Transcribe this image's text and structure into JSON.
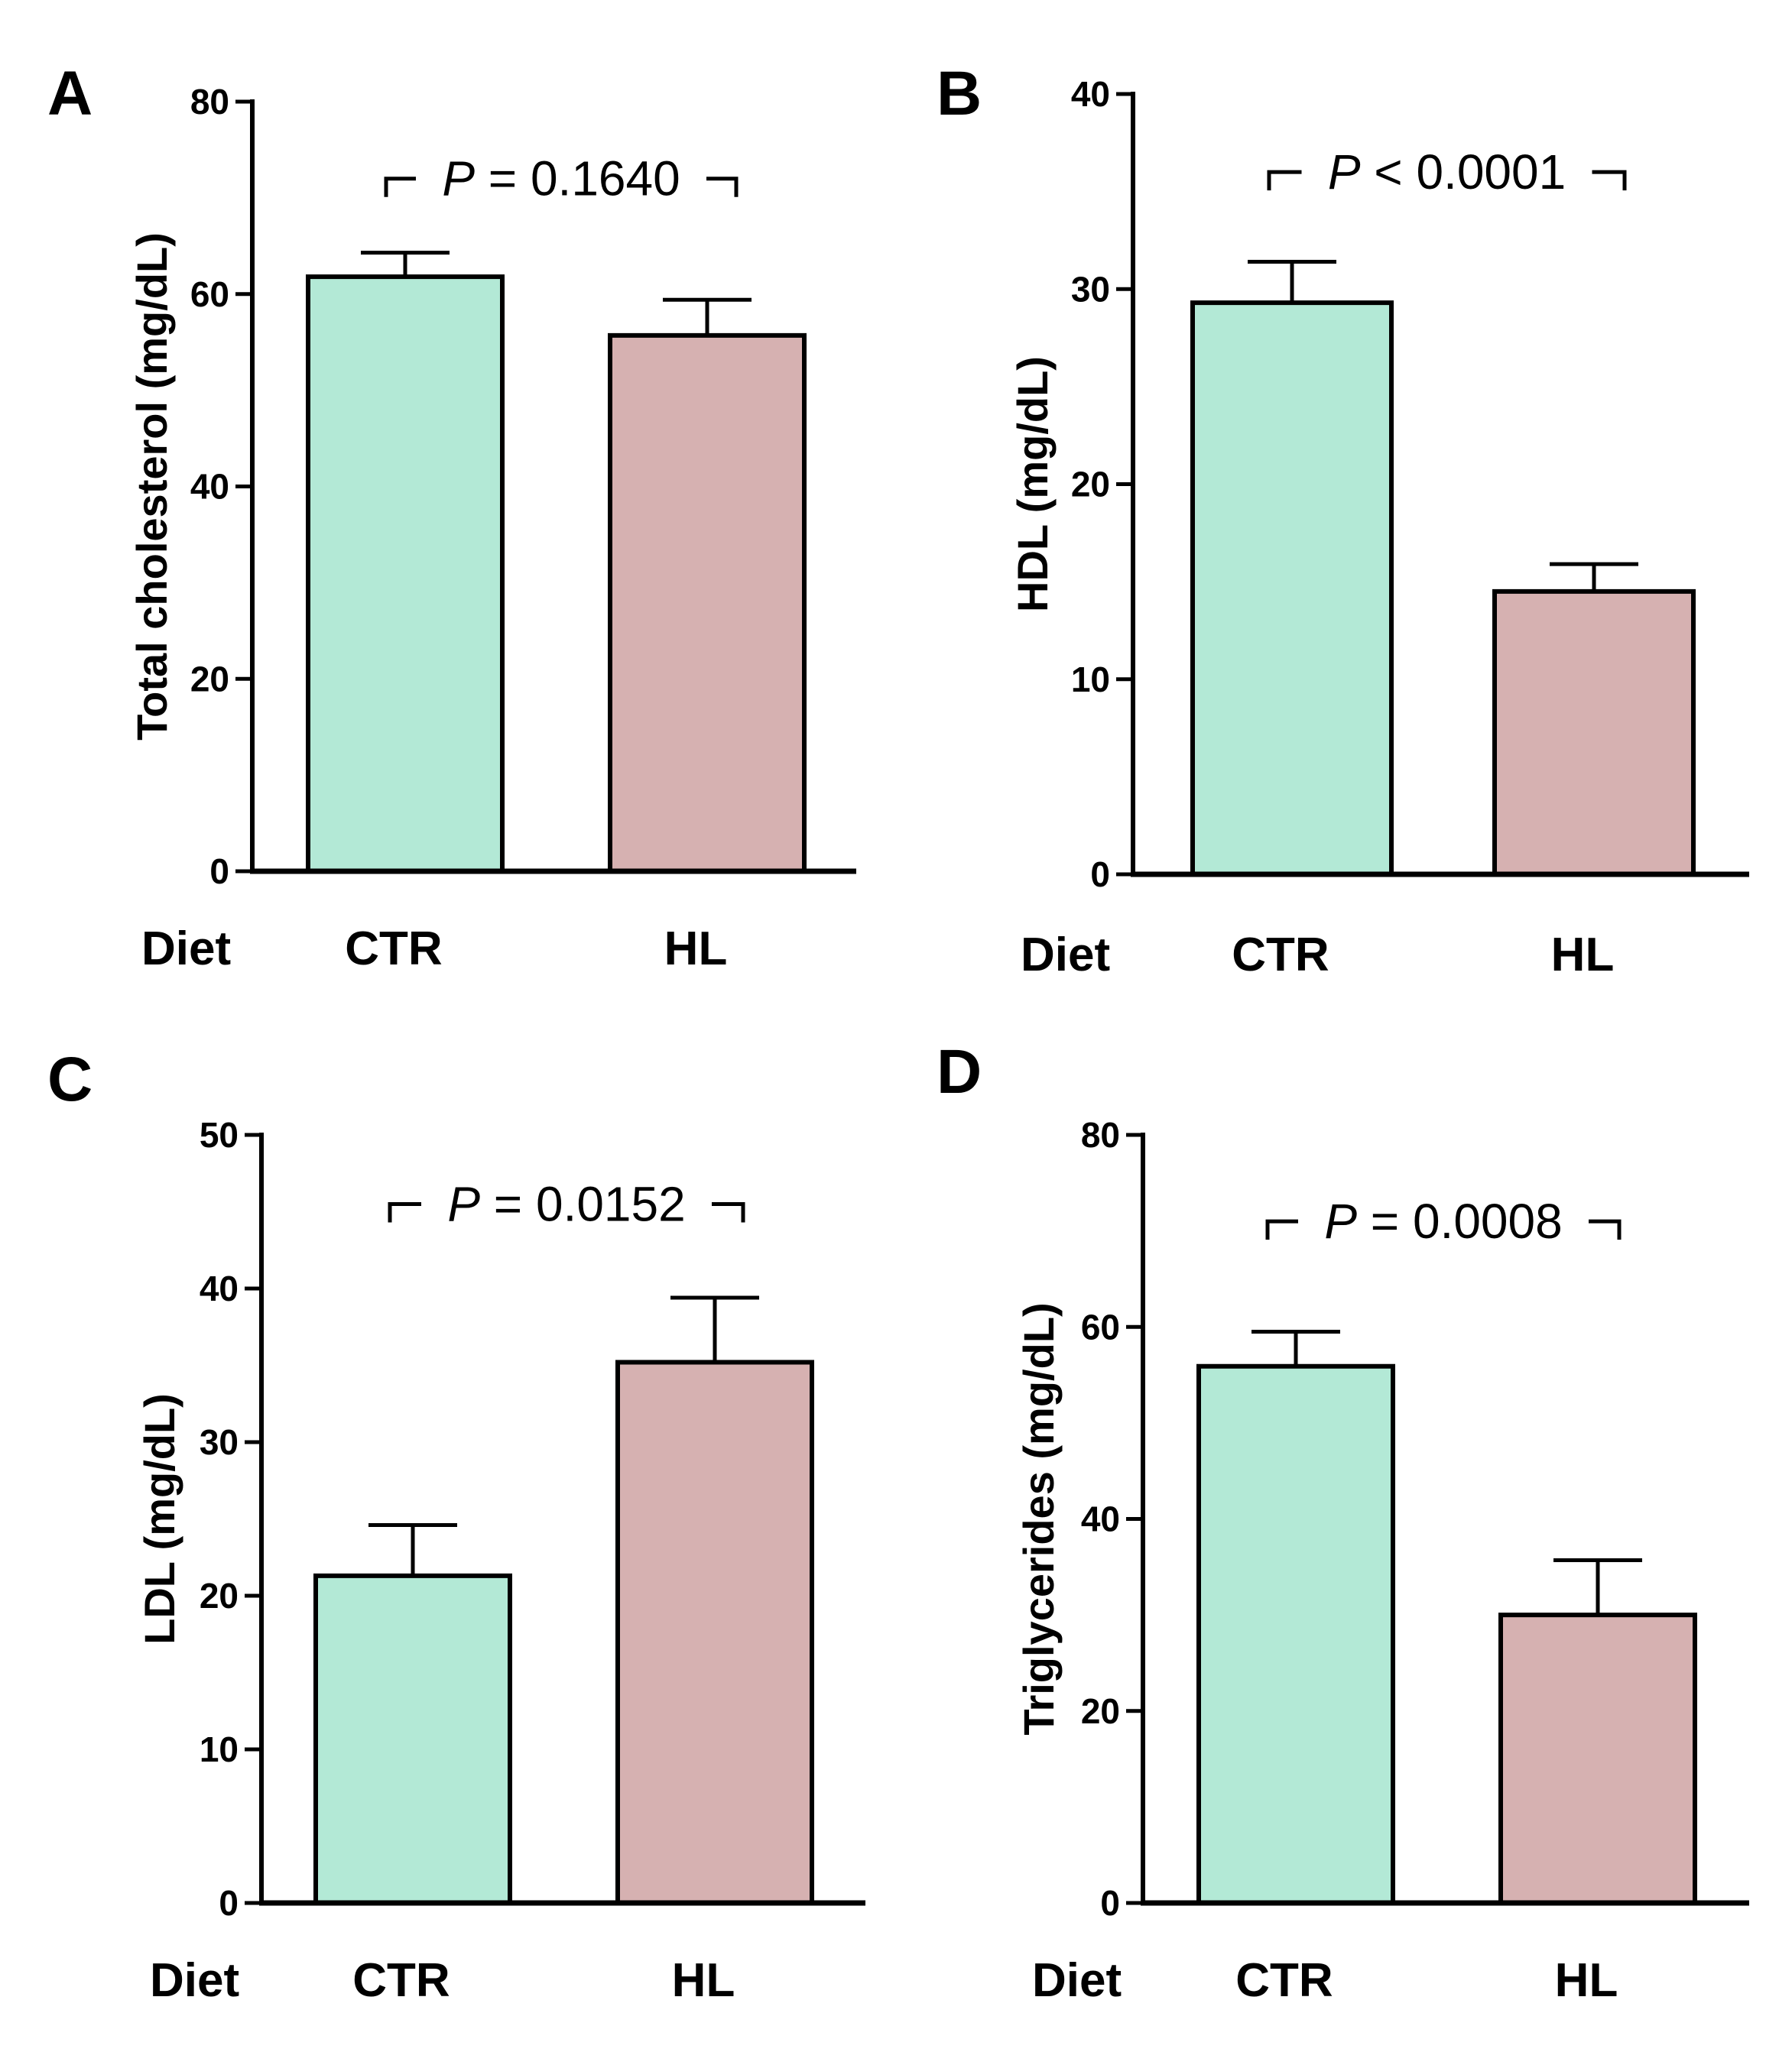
{
  "palette": {
    "CTR": "#b3e9d6",
    "HL": "#d6b1b1",
    "stroke": "#000000"
  },
  "chart_data": [
    {
      "panel": "A",
      "type": "bar",
      "categories": [
        "CTR",
        "HL"
      ],
      "group_label": "Diet",
      "values": [
        61.8,
        55.7
      ],
      "errors": [
        2.5,
        3.7
      ],
      "ylabel": "Total cholesterol (mg/dL)",
      "ylim": [
        0,
        80
      ],
      "yticks": [
        0,
        20,
        40,
        60,
        80
      ],
      "p_symbol": "P",
      "p_text": "= 0.1640",
      "p_level": 72
    },
    {
      "panel": "B",
      "type": "bar",
      "categories": [
        "CTR",
        "HL"
      ],
      "group_label": "Diet",
      "values": [
        29.3,
        14.5
      ],
      "errors": [
        2.1,
        1.4
      ],
      "ylabel": "HDL (mg/dL)",
      "ylim": [
        0,
        40
      ],
      "yticks": [
        0,
        10,
        20,
        30,
        40
      ],
      "p_symbol": "P",
      "p_text": "< 0.0001",
      "p_level": 36
    },
    {
      "panel": "C",
      "type": "bar",
      "categories": [
        "CTR",
        "HL"
      ],
      "group_label": "Diet",
      "values": [
        21.3,
        35.2
      ],
      "errors": [
        3.3,
        4.2
      ],
      "ylabel": "LDL (mg/dL)",
      "ylim": [
        0,
        50
      ],
      "yticks": [
        0,
        10,
        20,
        30,
        40,
        50
      ],
      "p_symbol": "P",
      "p_text": "= 0.0152",
      "p_level": 45.5
    },
    {
      "panel": "D",
      "type": "bar",
      "categories": [
        "CTR",
        "HL"
      ],
      "group_label": "Diet",
      "values": [
        55.9,
        30.0
      ],
      "errors": [
        3.6,
        5.7
      ],
      "ylabel": "Triglycerides (mg/dL)",
      "ylim": [
        0,
        80
      ],
      "yticks": [
        0,
        20,
        40,
        60,
        80
      ],
      "p_symbol": "P",
      "p_text": "= 0.0008",
      "p_level": 71
    }
  ]
}
